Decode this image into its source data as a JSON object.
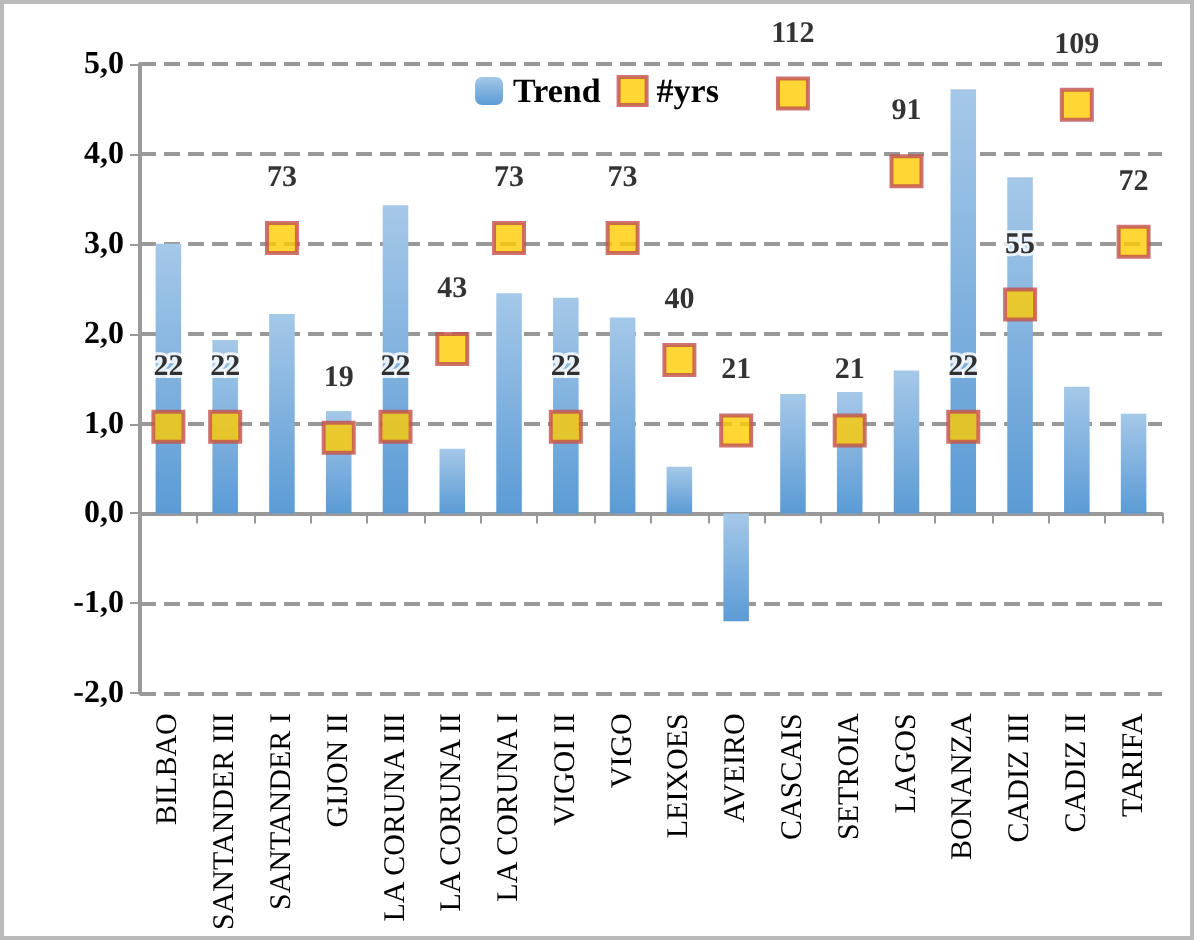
{
  "chart_data": {
    "type": "bar",
    "categories": [
      "BILBAO",
      "SANTANDER III",
      "SANTANDER I",
      "GIJON II",
      "LA CORUNA III",
      "LA CORUNA II",
      "LA CORUNA I",
      "VIGOI II",
      "VIGO",
      "LEIXOES",
      "AVEIRO",
      "CASCAIS",
      "SETROIA",
      "LAGOS",
      "BONANZA",
      "CADIZ III",
      "CADIZ II",
      "TARIFA"
    ],
    "series": [
      {
        "name": "Trend",
        "color": "#5b9bd5",
        "values": [
          3.0,
          1.93,
          2.22,
          1.14,
          3.43,
          0.72,
          2.45,
          2.4,
          2.18,
          0.52,
          -1.2,
          1.33,
          1.35,
          1.59,
          4.72,
          3.74,
          1.41,
          1.11
        ]
      },
      {
        "name": "#yrs",
        "type": "scatter",
        "axis": "y2",
        "color": "#ffcc00",
        "values": [
          22,
          22,
          73,
          19,
          22,
          43,
          73,
          22,
          73,
          40,
          21,
          112,
          21,
          91,
          22,
          55,
          109,
          72
        ],
        "value_labels": [
          "22",
          "22",
          "73",
          "19",
          "22",
          "43",
          "73",
          "22",
          "73",
          "40",
          "21",
          "112",
          "21",
          "91",
          "22",
          "55",
          "109",
          "72"
        ]
      }
    ],
    "ylim": [
      -2,
      5
    ],
    "yticks": [
      {
        "value": -2,
        "label": "-2,0"
      },
      {
        "value": -1,
        "label": "-1,0"
      },
      {
        "value": 0,
        "label": "0,0"
      },
      {
        "value": 1,
        "label": "1,0"
      },
      {
        "value": 2,
        "label": "2,0"
      },
      {
        "value": 3,
        "label": "3,0"
      },
      {
        "value": 4,
        "label": "4,0"
      },
      {
        "value": 5,
        "label": "5,0"
      }
    ],
    "y2lim": [
      -50,
      120
    ],
    "grid": "y",
    "legend": "top",
    "marker": "square"
  }
}
